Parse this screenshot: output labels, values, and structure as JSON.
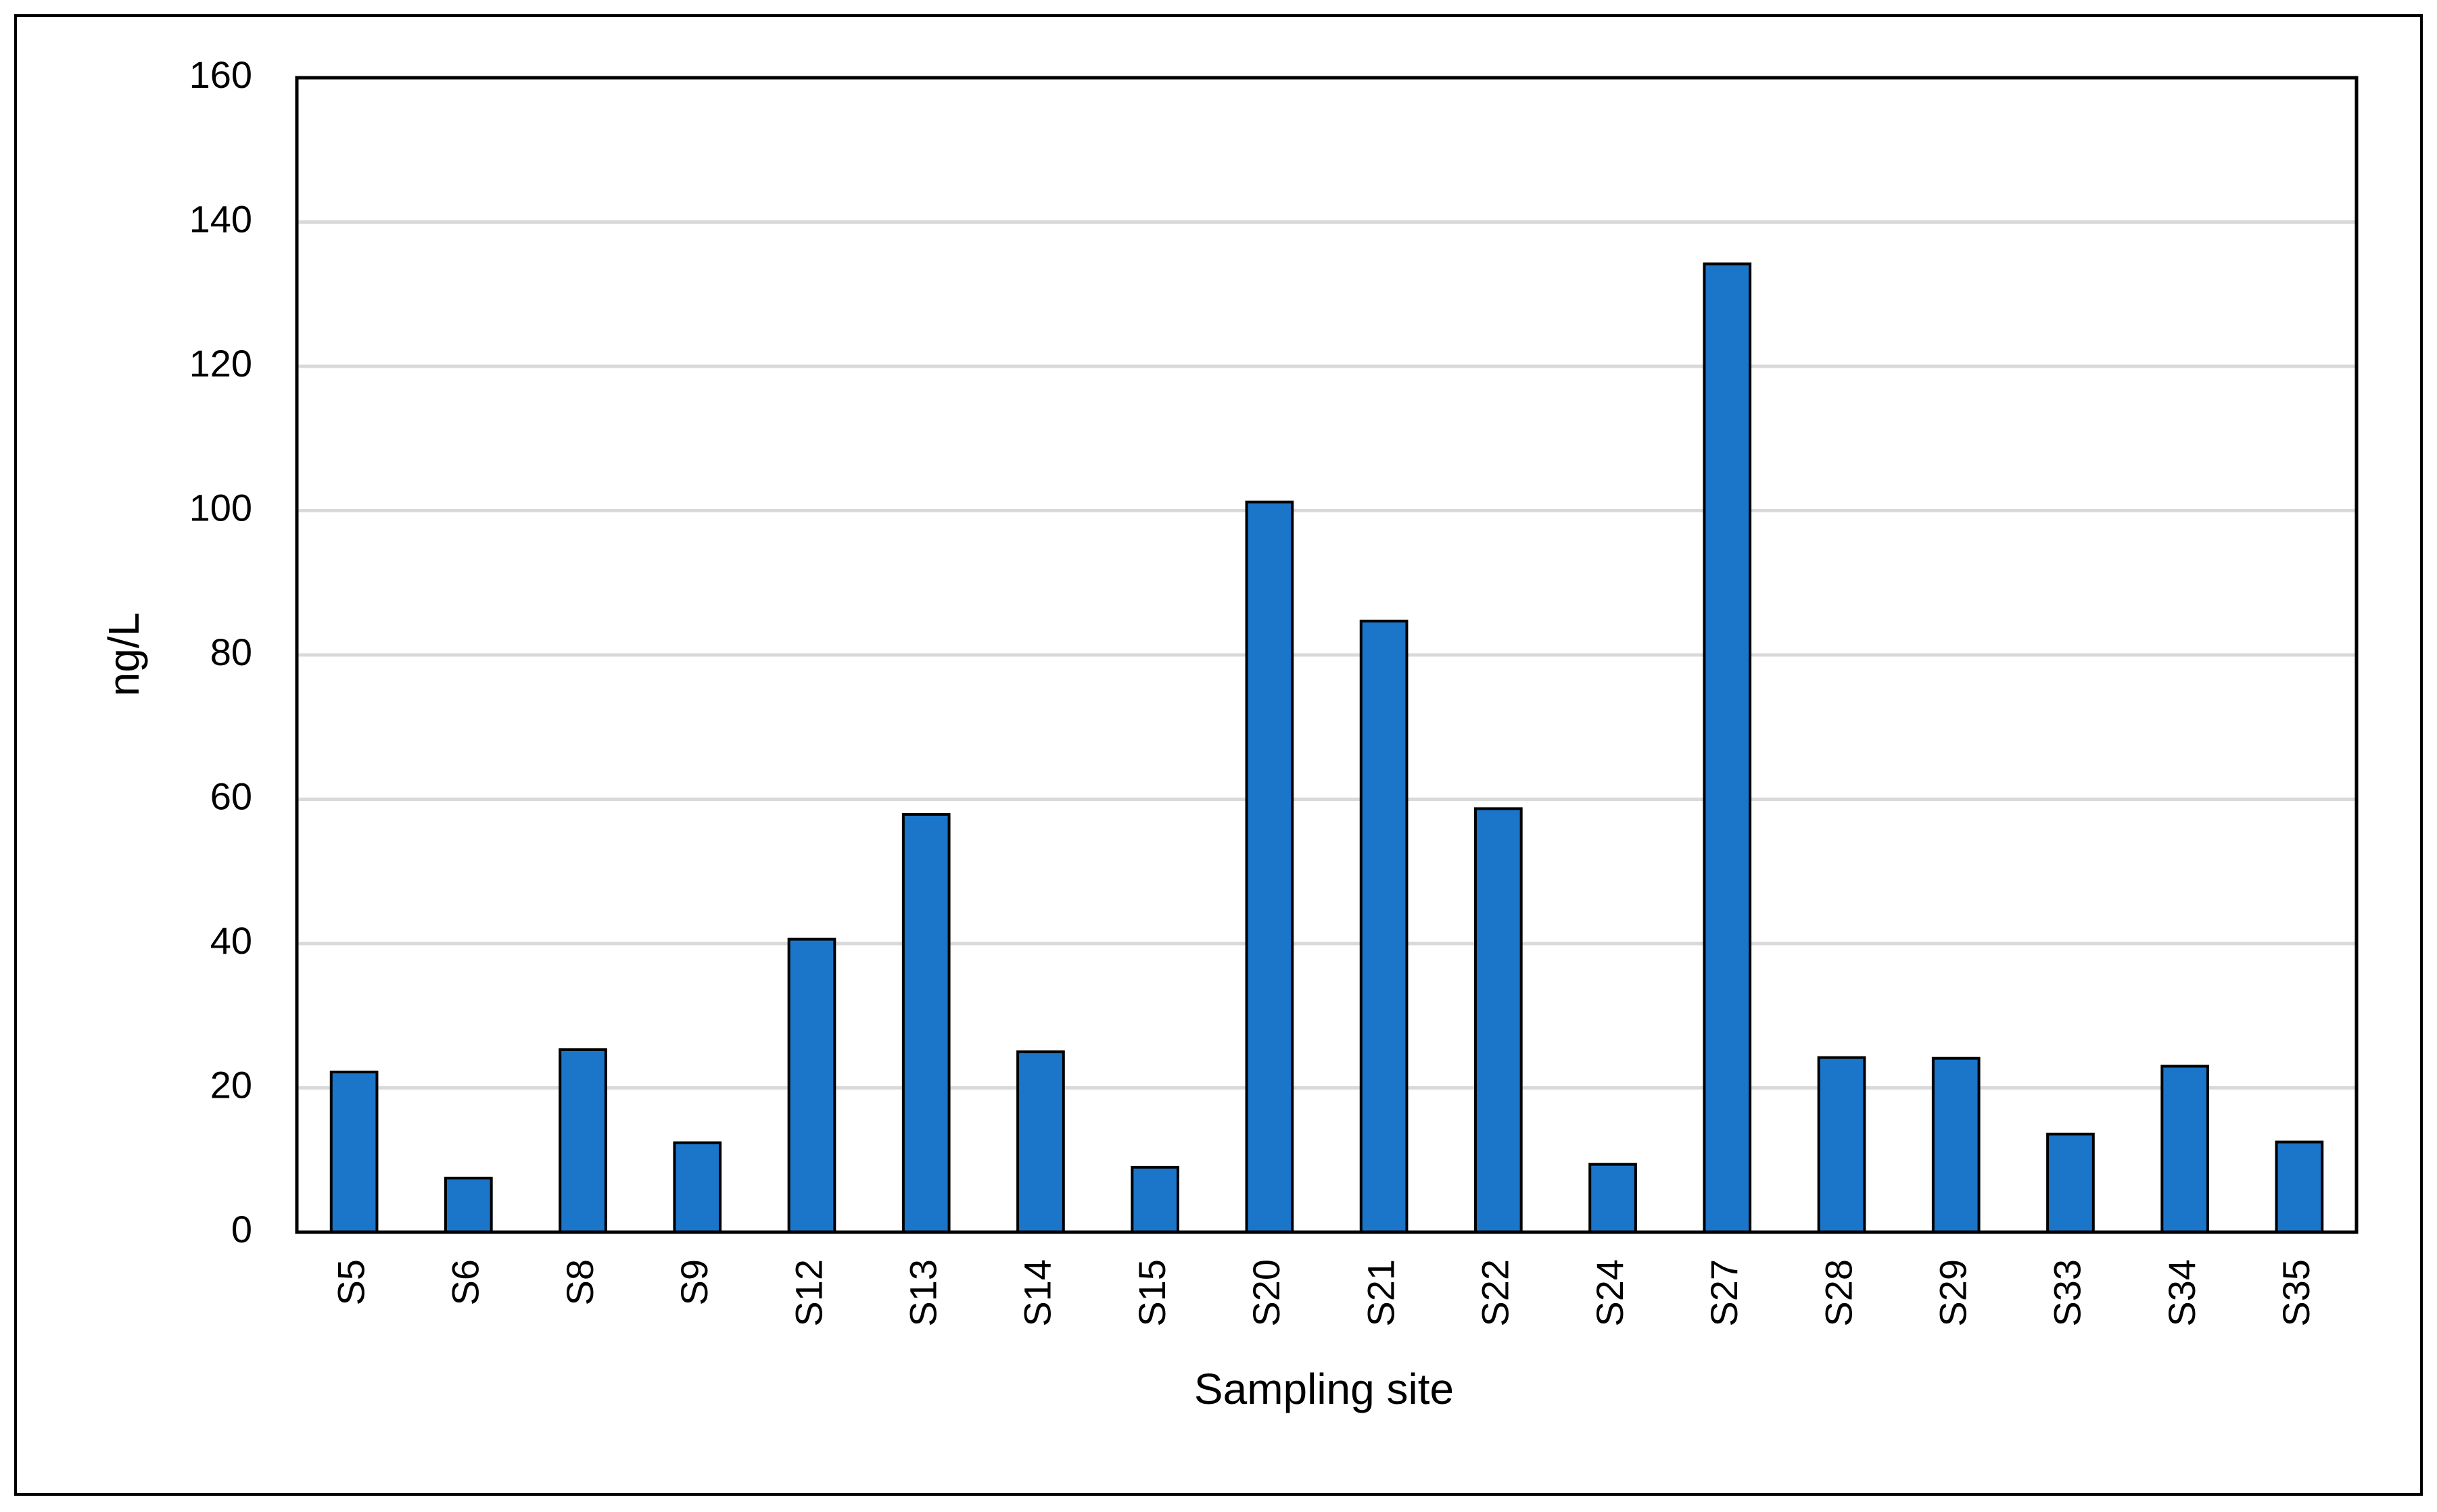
{
  "chart_data": {
    "type": "bar",
    "x_label": "Sampling site",
    "y_label": "ng/L",
    "categories": [
      "S5",
      "S6",
      "S8",
      "S9",
      "S12",
      "S13",
      "S14",
      "S15",
      "S20",
      "S21",
      "S22",
      "S24",
      "S27",
      "S28",
      "S29",
      "S33",
      "S34",
      "S35"
    ],
    "values": [
      22.2,
      7.5,
      25.3,
      12.4,
      40.6,
      57.9,
      25.0,
      9.0,
      101.2,
      84.7,
      58.7,
      9.4,
      134.2,
      24.2,
      24.1,
      13.6,
      23.0,
      12.5
    ],
    "color": "#1b75c9",
    "ylim": [
      0,
      160
    ],
    "yticks": [
      0,
      20,
      40,
      60,
      80,
      100,
      120,
      140,
      160
    ],
    "grid": true
  }
}
